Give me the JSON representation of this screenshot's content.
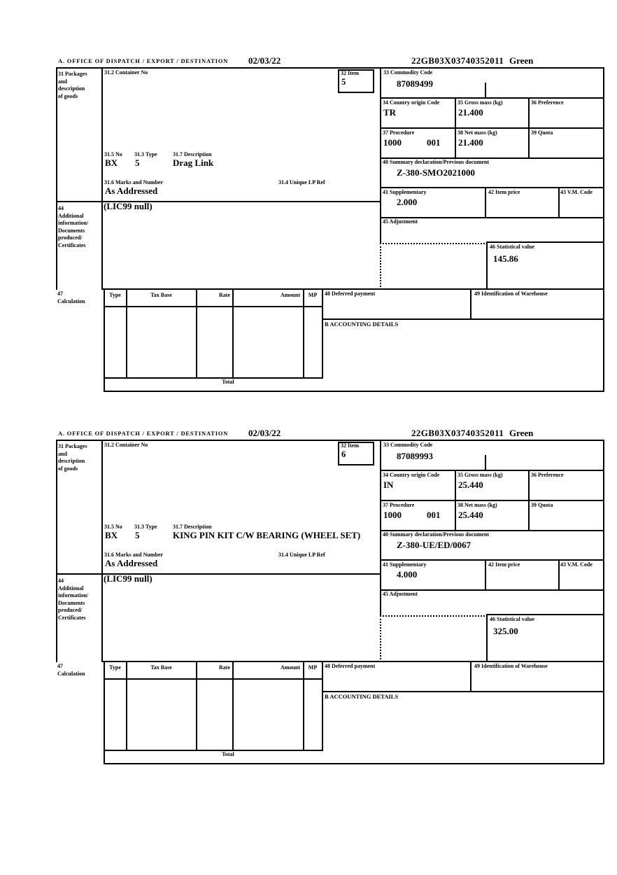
{
  "form": {
    "labels": {
      "office_header": "A. OFFICE OF DISPATCH / EXPORT / DESTINATION",
      "box31_lines": [
        "31 Packages",
        "and",
        "description",
        "of goods"
      ],
      "container_no": "31.2 Container No",
      "item": "32 Item",
      "commodity_code": "33 Commodity Code",
      "country_origin": "34 Country origin Code",
      "gross_mass": "35 Gross mass (kg)",
      "preference": "36 Preference",
      "procedure": "37 Procedure",
      "net_mass": "38 Net mass (kg)",
      "quota": "39 Quota",
      "summary_declaration": "40 Summary declaration/Previous document",
      "supplementary": "41 Supplementary",
      "item_price": "42 Item price",
      "vm_code": "43 V.M. Code",
      "box44_lines": [
        "44",
        "Additional",
        "information/",
        "Documents",
        "produced/",
        "Certificates"
      ],
      "adjustment": "45 Adjustment",
      "statistical_value": "46 Statistical value",
      "box47_lines": [
        "47",
        "Calculation"
      ],
      "pkg_no": "31.5 No",
      "pkg_type": "31.3 Type",
      "pkg_description": "31.7 Description",
      "marks_number": "31.6 Marks and Number",
      "unique_lp_ref": "31.4 Unique LP Ref",
      "col_type": "Type",
      "col_tax_base": "Tax Base",
      "col_rate": "Rate",
      "col_amount": "Amount",
      "col_mp": "MP",
      "total": "Total",
      "deferred_payment": "48 Deferred payment",
      "warehouse_id": "49 Identification of Warehouse",
      "accounting_details": "B ACCOUNTING DETAILS"
    },
    "sections": [
      {
        "date": "02/03/22",
        "reference": "22GB03X03740352011",
        "routing": "Green",
        "item_no": "5",
        "commodity_code": "87089499",
        "country_origin": "TR",
        "gross_mass": "21.400",
        "procedure_code": "1000",
        "procedure_ext": "001",
        "net_mass": "21.400",
        "previous_document": "Z-380-SMO2021000",
        "supplementary_units": "2.000",
        "statistical_value": "145.86",
        "package_code": "BX",
        "package_count": "5",
        "goods_description": "Drag Link",
        "marks": "As Addressed",
        "additional_information": "(LIC99 null)"
      },
      {
        "date": "02/03/22",
        "reference": "22GB03X03740352011",
        "routing": "Green",
        "item_no": "6",
        "commodity_code": "87089993",
        "country_origin": "IN",
        "gross_mass": "25.440",
        "procedure_code": "1000",
        "procedure_ext": "001",
        "net_mass": "25.440",
        "previous_document": "Z-380-UE/ED/0067",
        "supplementary_units": "4.000",
        "statistical_value": "325.00",
        "package_code": "BX",
        "package_count": "5",
        "goods_description": "KING PIN KIT C/W BEARING (WHEEL SET)",
        "marks": "As Addressed",
        "additional_information": "(LIC99 null)"
      }
    ]
  }
}
